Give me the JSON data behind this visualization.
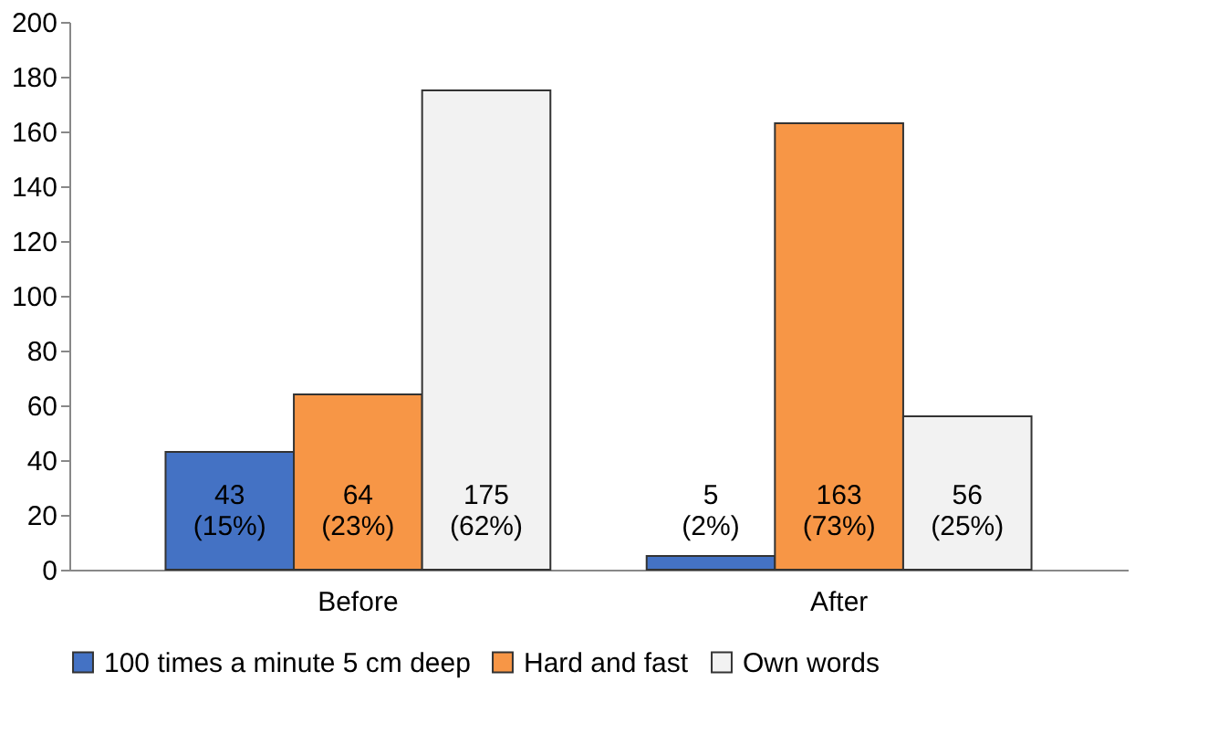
{
  "chart_data": {
    "type": "bar",
    "categories": [
      "Before",
      "After"
    ],
    "series": [
      {
        "name": "100 times a minute 5 cm deep",
        "color": "#4472c4",
        "values": [
          43,
          5
        ],
        "value_labels": [
          "43 (15%)",
          "5 (2%)"
        ]
      },
      {
        "name": "Hard and fast",
        "color": "#f79646",
        "values": [
          64,
          163
        ],
        "value_labels": [
          "64 (23%)",
          "163 (73%)"
        ]
      },
      {
        "name": "Own words",
        "color": "#f2f2f2",
        "values": [
          175,
          56
        ],
        "value_labels": [
          "175 (62%)",
          "56 (25%)"
        ]
      }
    ],
    "ylim": [
      0,
      200
    ],
    "yticks": [
      0,
      20,
      40,
      60,
      80,
      100,
      120,
      140,
      160,
      180,
      200
    ],
    "grid": false,
    "legend": "bottom"
  }
}
